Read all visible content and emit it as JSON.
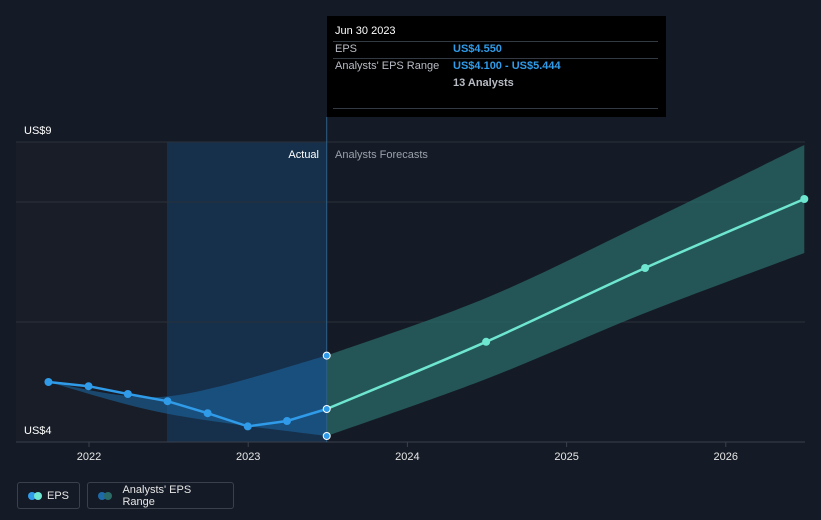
{
  "chart_data": {
    "type": "line",
    "x_ticks": [
      "2022",
      "2023",
      "2024",
      "2025",
      "2026"
    ],
    "y_labels": [
      "US$9",
      "US$4"
    ],
    "ylim": [
      4,
      9
    ],
    "region_labels": {
      "actual": "Actual",
      "forecast": "Analysts Forecasts"
    },
    "eps_actual": [
      {
        "date": "2021-09-30",
        "value": 5.0
      },
      {
        "date": "2021-12-31",
        "value": 4.93
      },
      {
        "date": "2022-03-31",
        "value": 4.8
      },
      {
        "date": "2022-06-30",
        "value": 4.68
      },
      {
        "date": "2022-09-30",
        "value": 4.48
      },
      {
        "date": "2022-12-31",
        "value": 4.26
      },
      {
        "date": "2023-03-31",
        "value": 4.35
      },
      {
        "date": "2023-06-30",
        "value": 4.55
      }
    ],
    "eps_forecast": [
      {
        "date": "2023-06-30",
        "value": 4.55
      },
      {
        "date": "2024-06-30",
        "value": 5.67
      },
      {
        "date": "2025-06-30",
        "value": 6.9
      },
      {
        "date": "2026-06-30",
        "value": 8.05
      }
    ],
    "range_low": [
      {
        "date": "2023-06-30",
        "value": 4.1
      },
      {
        "date": "2024-06-30",
        "value": 5.05
      },
      {
        "date": "2025-06-30",
        "value": 6.15
      },
      {
        "date": "2026-06-30",
        "value": 7.15
      }
    ],
    "range_high": [
      {
        "date": "2023-06-30",
        "value": 5.44
      },
      {
        "date": "2024-06-30",
        "value": 6.4
      },
      {
        "date": "2025-06-30",
        "value": 7.65
      },
      {
        "date": "2026-06-30",
        "value": 8.95
      }
    ],
    "past_range_low": [
      {
        "date": "2021-09-30",
        "value": 5.0
      },
      {
        "date": "2022-06-30",
        "value": 4.47
      },
      {
        "date": "2023-06-30",
        "value": 4.1
      }
    ],
    "past_range_high": [
      {
        "date": "2021-09-30",
        "value": 5.0
      },
      {
        "date": "2022-06-30",
        "value": 4.76
      },
      {
        "date": "2023-06-30",
        "value": 5.44
      }
    ],
    "colors": {
      "eps_actual": "#2f9be9",
      "eps_forecast": "#6ee6d0",
      "range_fill": "#2a6b68",
      "past_range_fill": "#1d6aa8",
      "background": "#151b26"
    }
  },
  "tooltip": {
    "date": "Jun 30 2023",
    "eps_label": "EPS",
    "eps_value": "US$4.550",
    "range_label": "Analysts' EPS Range",
    "range_value": "US$4.100 - US$5.444",
    "analysts": "13 Analysts"
  },
  "legend": {
    "eps": "EPS",
    "range": "Analysts' EPS Range"
  }
}
